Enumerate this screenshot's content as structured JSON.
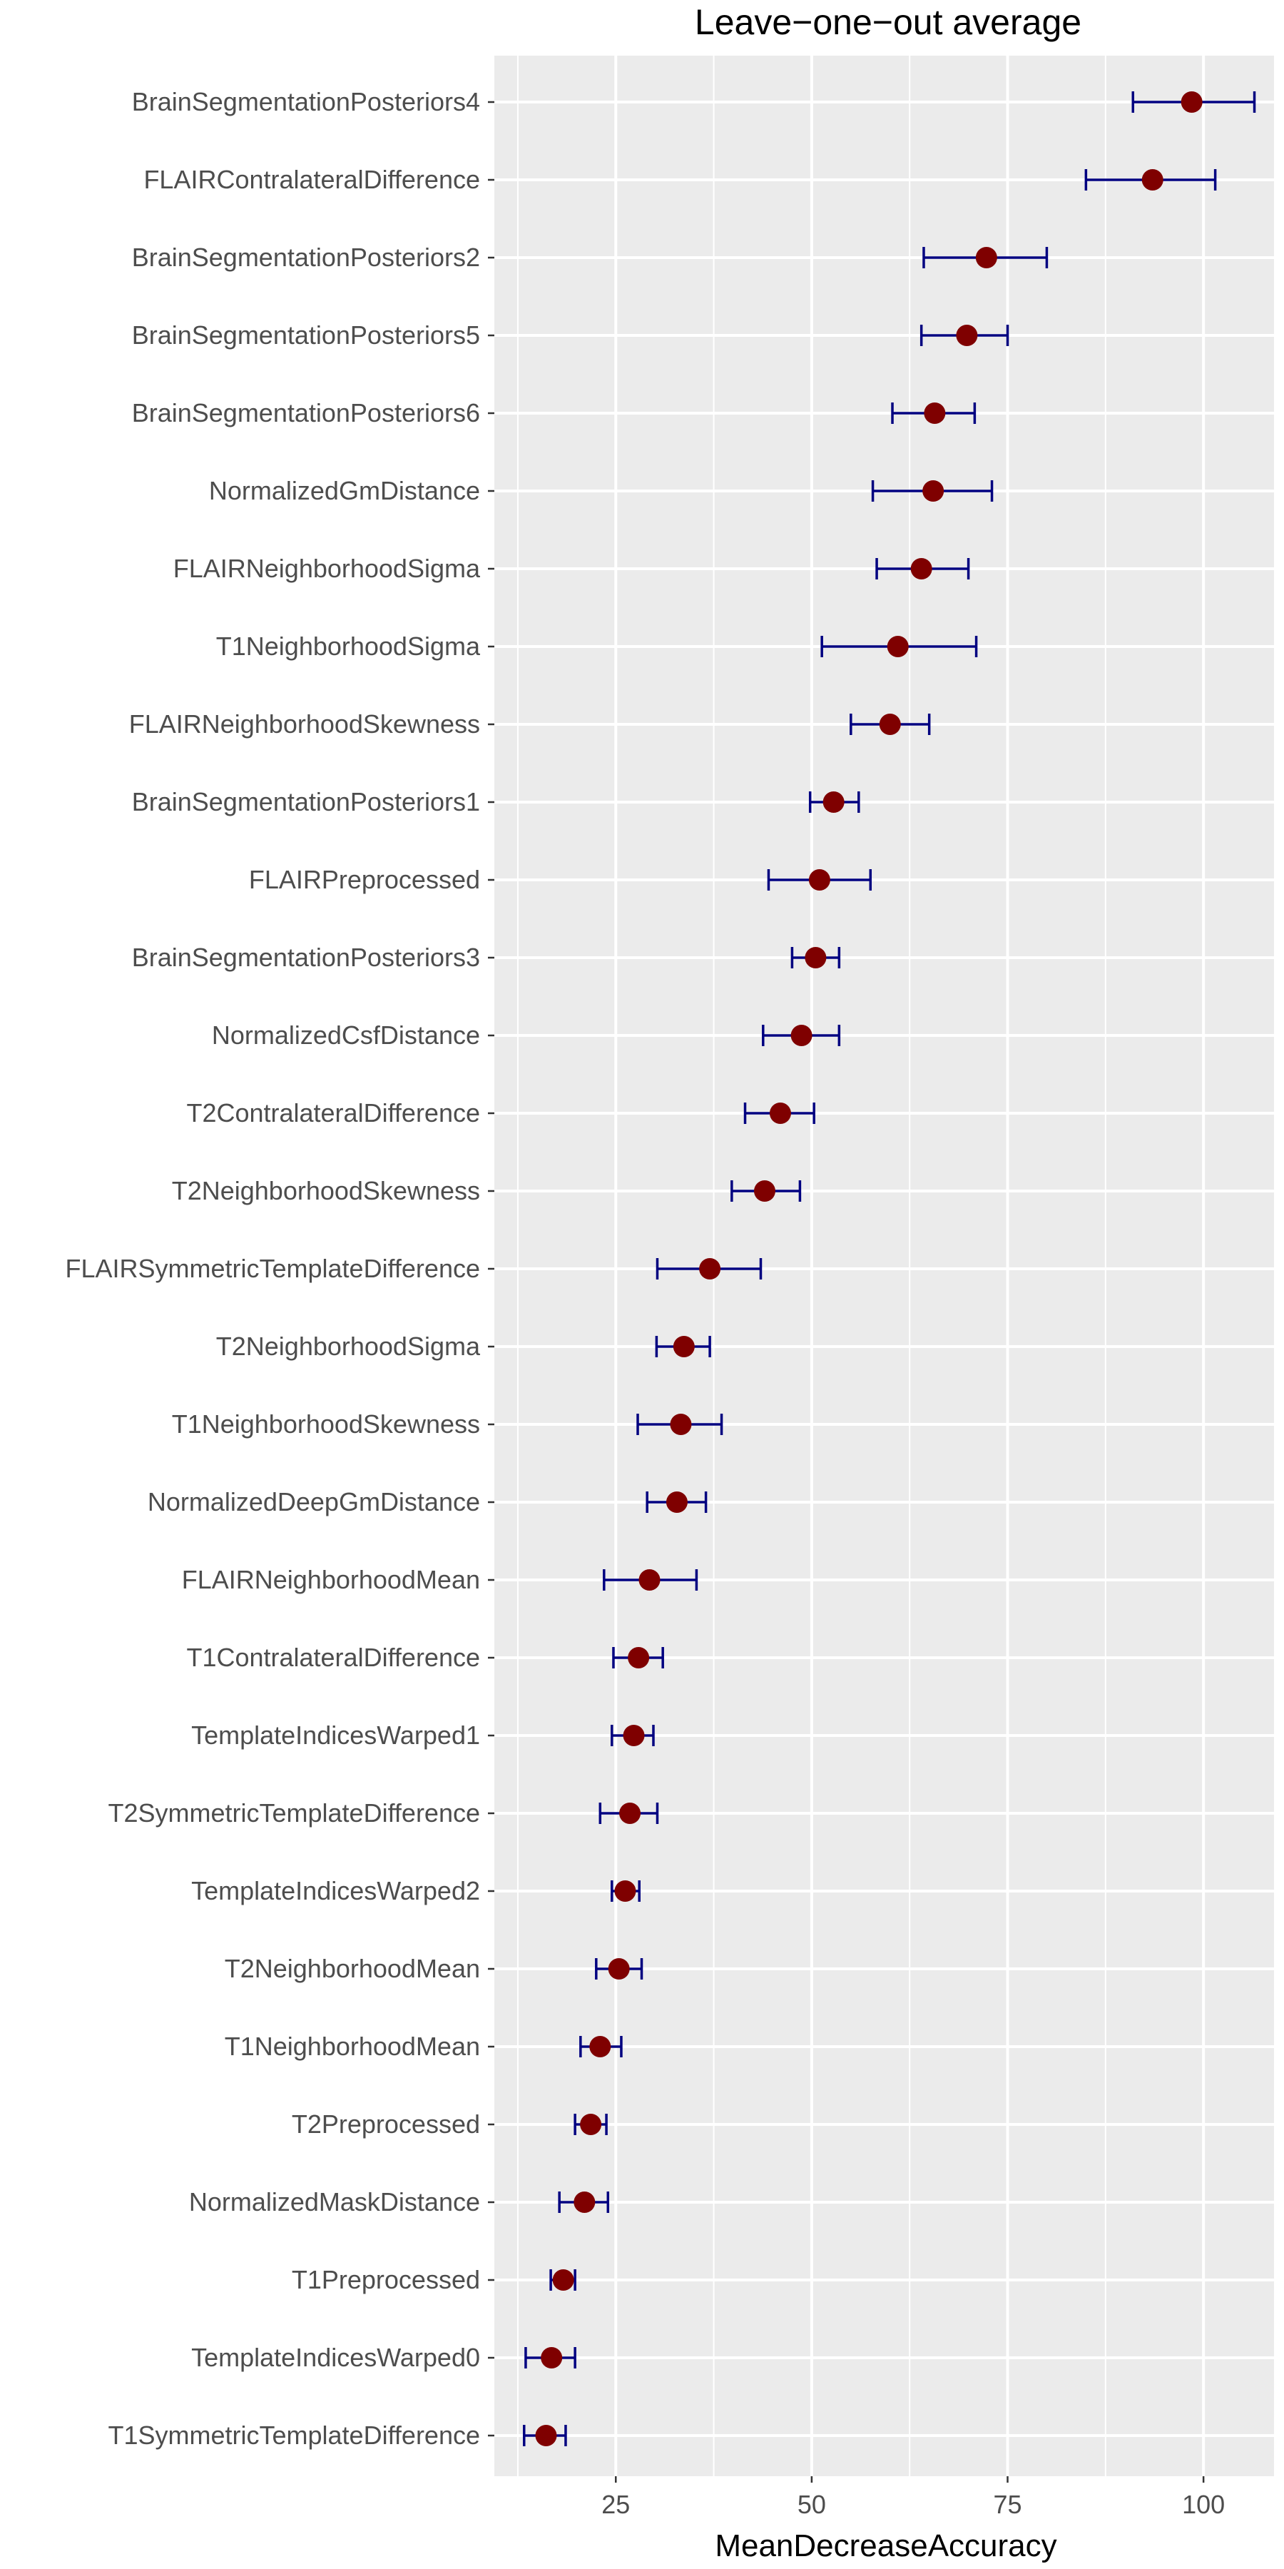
{
  "chart_data": {
    "type": "scatter",
    "title": "Leave−one−out average",
    "xlabel": "MeanDecreaseAccuracy",
    "ylabel": "",
    "xlim": [
      9.5,
      109
    ],
    "xticks": [
      25,
      50,
      75,
      100
    ],
    "xtick_labels": [
      "25",
      "50",
      "75",
      "100"
    ],
    "grid": true,
    "colors": {
      "panel": "#ebebeb",
      "grid_major": "#ffffff",
      "point": "#7f0000",
      "errorbar": "#000080"
    },
    "categories": [
      "BrainSegmentationPosteriors4",
      "FLAIRContralateralDifference",
      "BrainSegmentationPosteriors2",
      "BrainSegmentationPosteriors5",
      "BrainSegmentationPosteriors6",
      "NormalizedGmDistance",
      "FLAIRNeighborhoodSigma",
      "T1NeighborhoodSigma",
      "FLAIRNeighborhoodSkewness",
      "BrainSegmentationPosteriors1",
      "FLAIRPreprocessed",
      "BrainSegmentationPosteriors3",
      "NormalizedCsfDistance",
      "T2ContralateralDifference",
      "T2NeighborhoodSkewness",
      "FLAIRSymmetricTemplateDifference",
      "T2NeighborhoodSigma",
      "T1NeighborhoodSkewness",
      "NormalizedDeepGmDistance",
      "FLAIRNeighborhoodMean",
      "T1ContralateralDifference",
      "TemplateIndicesWarped1",
      "T2SymmetricTemplateDifference",
      "TemplateIndicesWarped2",
      "T2NeighborhoodMean",
      "T1NeighborhoodMean",
      "T2Preprocessed",
      "NormalizedMaskDistance",
      "T1Preprocessed",
      "TemplateIndicesWarped0",
      "T1SymmetricTemplateDifference"
    ],
    "values": [
      98.5,
      93.5,
      72.3,
      69.8,
      65.7,
      65.5,
      64.0,
      61.0,
      60.0,
      52.8,
      51.0,
      50.5,
      48.7,
      46.0,
      44.0,
      37.0,
      33.7,
      33.3,
      32.8,
      29.3,
      27.9,
      27.3,
      26.8,
      26.2,
      25.4,
      23.0,
      21.8,
      21.0,
      18.3,
      16.8,
      16.1
    ],
    "lower": [
      91.0,
      85.0,
      64.3,
      64.0,
      60.3,
      57.8,
      58.3,
      51.3,
      55.0,
      49.8,
      44.5,
      47.5,
      43.8,
      41.5,
      39.8,
      30.3,
      30.2,
      27.8,
      29.0,
      23.5,
      24.7,
      24.5,
      23.0,
      24.5,
      22.5,
      20.5,
      19.8,
      17.8,
      16.7,
      13.5,
      13.3
    ],
    "upper": [
      106.5,
      101.5,
      80.0,
      75.0,
      70.8,
      73.0,
      70.0,
      71.0,
      65.0,
      56.0,
      57.5,
      53.5,
      53.5,
      50.3,
      48.5,
      43.5,
      37.0,
      38.5,
      36.5,
      35.3,
      31.0,
      29.8,
      30.3,
      28.0,
      28.3,
      25.7,
      23.8,
      24.0,
      19.8,
      19.8,
      18.6
    ]
  }
}
